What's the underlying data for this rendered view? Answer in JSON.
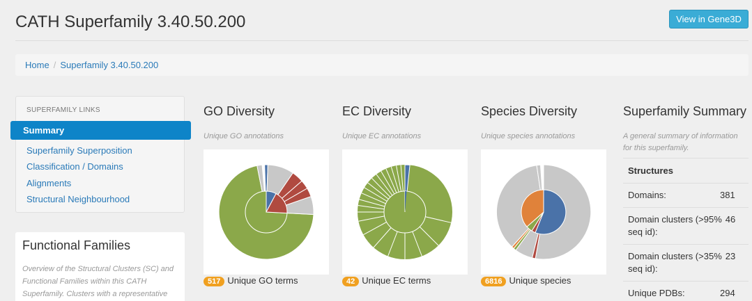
{
  "page": {
    "title": "CATH Superfamily 3.40.50.200",
    "gene3d_button": "View in Gene3D"
  },
  "breadcrumb": {
    "home": "Home",
    "separator": "/",
    "current": "Superfamily 3.40.50.200"
  },
  "sidebar": {
    "heading": "SUPERFAMILY LINKS",
    "items": [
      {
        "label": "Summary",
        "active": true
      },
      {
        "label": "Superfamily Superposition"
      },
      {
        "label": "Classification / Domains"
      },
      {
        "label": "Alignments"
      },
      {
        "label": "Structural Neighbourhood"
      }
    ]
  },
  "functional_families": {
    "title": "Functional Families",
    "description": "Overview of the Structural Clusters (SC) and Functional Families within this CATH Superfamily. Clusters with a representative"
  },
  "go": {
    "title": "GO Diversity",
    "subtitle": "Unique GO annotations",
    "count": "517",
    "count_label": "Unique GO terms"
  },
  "ec": {
    "title": "EC Diversity",
    "subtitle": "Unique EC annotations",
    "count": "42",
    "count_label": "Unique EC terms"
  },
  "species": {
    "title": "Species Diversity",
    "subtitle": "Unique species annotations",
    "count": "6816",
    "count_label": "Unique species"
  },
  "summary": {
    "title": "Superfamily Summary",
    "subtitle": "A general summary of information for this superfamily.",
    "section": "Structures",
    "rows": [
      {
        "label": "Domains:",
        "value": "381"
      },
      {
        "label": "Domain clusters (>95% seq id):",
        "value": "46"
      },
      {
        "label": "Domain clusters (>35% seq id):",
        "value": "23"
      },
      {
        "label": "Unique PDBs:",
        "value": "294"
      }
    ]
  },
  "colors": {
    "green": "#8ba84a",
    "blue": "#4a72a8",
    "red": "#b04a40",
    "grey": "#c8c8c8",
    "orange": "#e0823a",
    "badge": "#f0a020",
    "accent": "#0e84c8"
  }
}
